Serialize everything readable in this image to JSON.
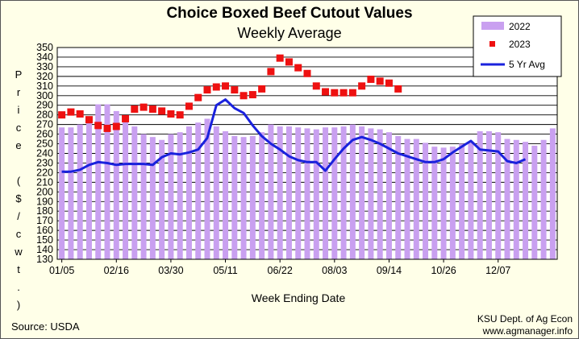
{
  "chart_data": {
    "type": "bar",
    "title": "Choice Boxed Beef Cutout Values",
    "subtitle": "Weekly Average",
    "ylabel": "Price ($/cwt.)",
    "xlabel": "Week Ending Date",
    "ylim": [
      130,
      350
    ],
    "yticks": [
      130,
      140,
      150,
      160,
      170,
      180,
      190,
      200,
      210,
      220,
      230,
      240,
      250,
      260,
      270,
      280,
      290,
      300,
      310,
      320,
      330,
      340,
      350
    ],
    "xticks": [
      {
        "week": 1,
        "label": "01/05"
      },
      {
        "week": 7,
        "label": "02/16"
      },
      {
        "week": 13,
        "label": "03/30"
      },
      {
        "week": 19,
        "label": "05/11"
      },
      {
        "week": 25,
        "label": "06/22"
      },
      {
        "week": 31,
        "label": "08/03"
      },
      {
        "week": 37,
        "label": "09/14"
      },
      {
        "week": 43,
        "label": "10/26"
      },
      {
        "week": 49,
        "label": "12/07"
      }
    ],
    "grid": true,
    "legend_position": "top-right",
    "series": [
      {
        "name": "2022",
        "kind": "bar",
        "color": "#c9a0f0",
        "values": [
          267,
          267,
          270,
          276,
          291,
          291,
          284,
          277,
          268,
          260,
          257,
          254,
          260,
          262,
          268,
          272,
          276,
          268,
          263,
          258,
          257,
          258,
          262,
          270,
          268,
          268,
          267,
          266,
          265,
          267,
          267,
          268,
          270,
          268,
          266,
          265,
          262,
          258,
          255,
          255,
          251,
          247,
          246,
          247,
          250,
          252,
          263,
          263,
          262,
          255,
          254,
          252,
          248,
          254,
          266
        ]
      },
      {
        "name": "2023",
        "kind": "marker",
        "color": "#ee1111",
        "values": [
          280,
          283,
          281,
          275,
          269,
          266,
          268,
          276,
          286,
          288,
          286,
          284,
          281,
          280,
          289,
          298,
          306,
          309,
          310,
          306,
          300,
          301,
          307,
          325,
          339,
          335,
          329,
          323,
          310,
          304,
          303,
          303,
          303,
          310,
          317,
          315,
          313,
          307
        ]
      },
      {
        "name": "5 Yr Avg",
        "kind": "line",
        "color": "#1a22dd",
        "values": [
          221,
          221,
          223,
          228,
          231,
          230,
          228,
          229,
          229,
          229,
          228,
          236,
          240,
          239,
          241,
          244,
          256,
          290,
          296,
          287,
          282,
          269,
          258,
          250,
          244,
          237,
          233,
          231,
          231,
          222,
          234,
          245,
          254,
          257,
          254,
          250,
          245,
          240,
          237,
          234,
          231,
          231,
          234,
          241,
          247,
          253,
          244,
          243,
          242,
          232,
          230,
          234
        ]
      }
    ]
  },
  "footer": {
    "source": "Source:  USDA",
    "credit_line1": "KSU Dept. of Ag Econ",
    "credit_line2": "www.agmanager.info"
  },
  "colors": {
    "background": "#ffffe8",
    "plot_background": "#ffffff"
  }
}
